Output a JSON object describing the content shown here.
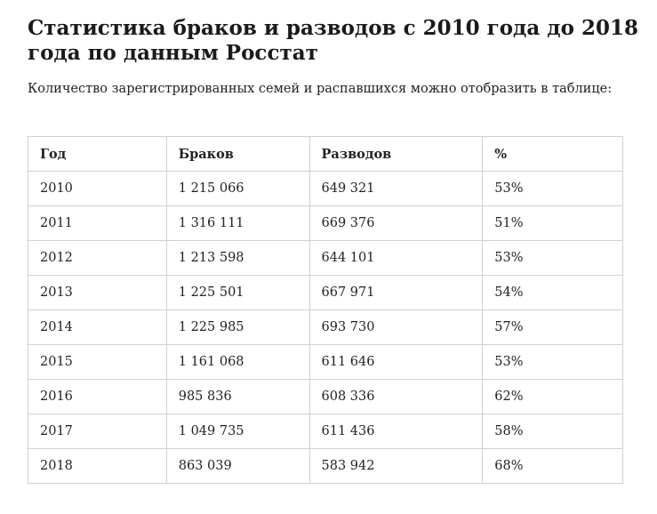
{
  "title": "Статистика браков и разводов с 2010 года до 2018 года по данным Росстат",
  "subtitle": "Количество зарегистрированных семей и распавшихся можно отобразить в таблице:",
  "table": {
    "headers": [
      "Год",
      "Браков",
      "Разводов",
      "%"
    ],
    "rows": [
      [
        "2010",
        "1 215 066",
        "649 321",
        "53%"
      ],
      [
        "2011",
        "1 316 111",
        "669 376",
        "51%"
      ],
      [
        "2012",
        "1 213 598",
        "644 101",
        "53%"
      ],
      [
        "2013",
        "1 225 501",
        "667 971",
        "54%"
      ],
      [
        "2014",
        "1 225 985",
        "693 730",
        "57%"
      ],
      [
        "2015",
        "1 161 068",
        "611 646",
        "53%"
      ],
      [
        "2016",
        "985 836",
        "608 336",
        "62%"
      ],
      [
        "2017",
        "1 049 735",
        "611 436",
        "58%"
      ],
      [
        "2018",
        "863 039",
        "583 942",
        "68%"
      ]
    ]
  }
}
